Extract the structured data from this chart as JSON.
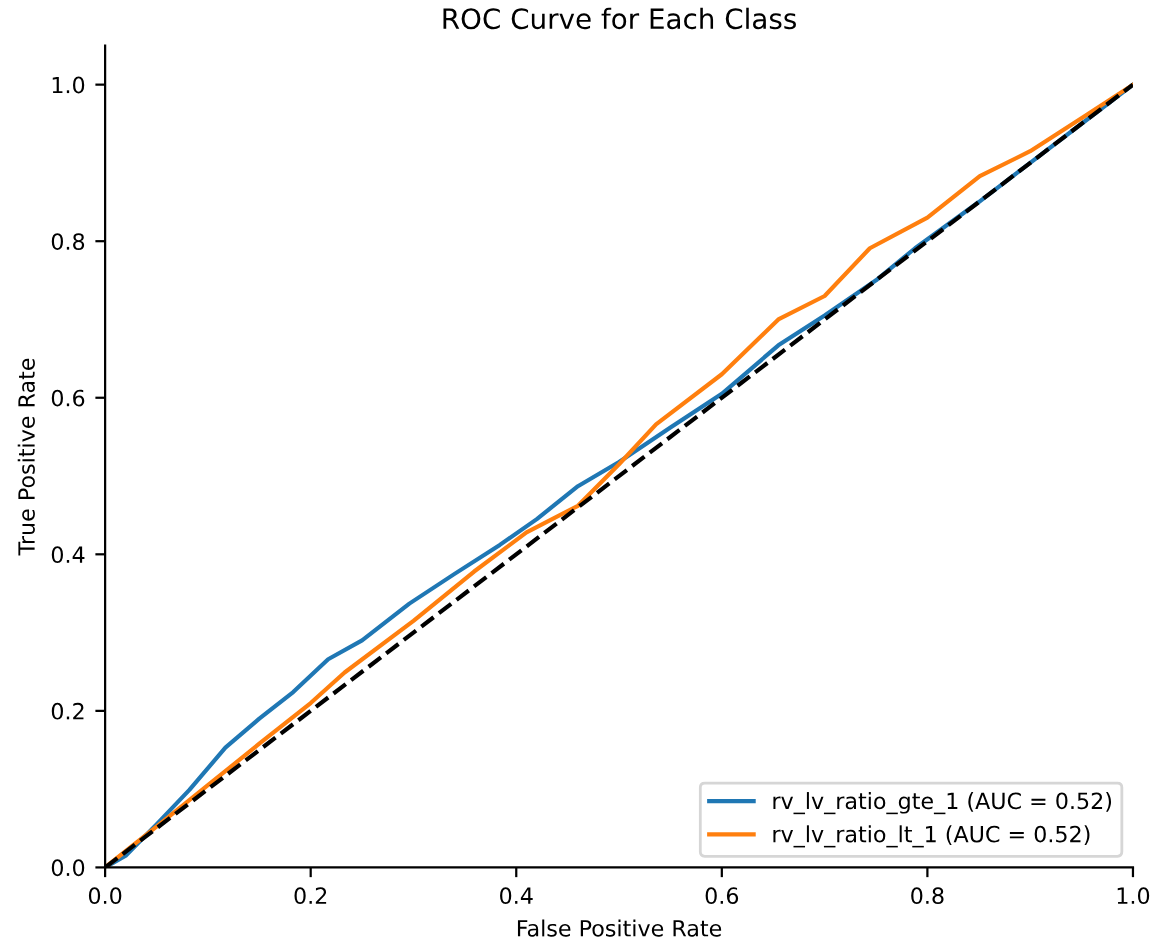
{
  "chart_data": {
    "type": "line",
    "title": "ROC Curve for Each Class",
    "xlabel": "False Positive Rate",
    "ylabel": "True Positive Rate",
    "xlim": [
      0.0,
      1.0
    ],
    "ylim": [
      0.0,
      1.05
    ],
    "xticks": [
      {
        "value": 0,
        "label": "0.0"
      },
      {
        "value": 0.2,
        "label": "0.2"
      },
      {
        "value": 0.4,
        "label": "0.4"
      },
      {
        "value": 0.6,
        "label": "0.6"
      },
      {
        "value": 0.8,
        "label": "0.8"
      },
      {
        "value": 1,
        "label": "1.0"
      }
    ],
    "yticks": [
      {
        "value": 0,
        "label": "0.0"
      },
      {
        "value": 0.2,
        "label": "0.2"
      },
      {
        "value": 0.4,
        "label": "0.4"
      },
      {
        "value": 0.6,
        "label": "0.6"
      },
      {
        "value": 0.8,
        "label": "0.8"
      },
      {
        "value": 1,
        "label": "1.0"
      }
    ],
    "grid": false,
    "legend": "bottom right",
    "series": [
      {
        "name": "rv_lv_ratio_gte_1 (AUC = 0.52)",
        "color": "#1f77b4",
        "x": [
          0,
          0.02,
          0.05,
          0.082,
          0.117,
          0.15,
          0.183,
          0.217,
          0.25,
          0.296,
          0.34,
          0.384,
          0.42,
          0.46,
          0.5,
          0.55,
          0.6,
          0.655,
          0.7,
          0.75,
          0.788,
          0.85,
          0.9,
          0.95,
          1.0
        ],
        "values": [
          0,
          0.015,
          0.055,
          0.099,
          0.153,
          0.19,
          0.224,
          0.266,
          0.29,
          0.337,
          0.375,
          0.412,
          0.445,
          0.487,
          0.518,
          0.562,
          0.605,
          0.667,
          0.705,
          0.75,
          0.791,
          0.85,
          0.9,
          0.95,
          1.0
        ]
      },
      {
        "name": "rv_lv_ratio_lt_1 (AUC = 0.52)",
        "color": "#ff7f0e",
        "x": [
          0,
          0.05,
          0.1,
          0.15,
          0.2,
          0.233,
          0.3,
          0.359,
          0.41,
          0.46,
          0.5,
          0.536,
          0.6,
          0.655,
          0.7,
          0.744,
          0.8,
          0.851,
          0.9,
          0.951,
          1.0
        ],
        "values": [
          0,
          0.052,
          0.105,
          0.158,
          0.21,
          0.249,
          0.315,
          0.378,
          0.428,
          0.462,
          0.515,
          0.566,
          0.63,
          0.7,
          0.73,
          0.791,
          0.83,
          0.883,
          0.915,
          0.958,
          1.0
        ]
      },
      {
        "color": "#000000",
        "line_style": "dashed",
        "x": [
          0,
          1
        ],
        "values": [
          0,
          1
        ]
      }
    ]
  }
}
